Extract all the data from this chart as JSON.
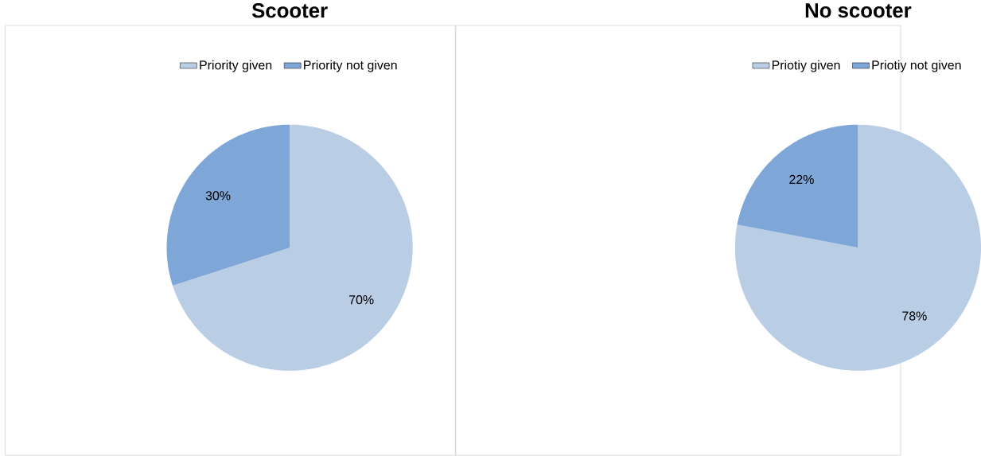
{
  "chart_data": [
    {
      "type": "pie",
      "title": "Scooter",
      "categories": [
        "Priority given",
        "Priority not given"
      ],
      "values": [
        70,
        30
      ],
      "colors": [
        "#b9cde5",
        "#7ea7d8"
      ],
      "value_labels": [
        "70%",
        "30%"
      ],
      "legend": "top"
    },
    {
      "type": "pie",
      "title": "No scooter",
      "categories": [
        "Priotiy given",
        "Priotiy not given"
      ],
      "values": [
        78,
        22
      ],
      "colors": [
        "#b9cde5",
        "#7ea7d8"
      ],
      "value_labels": [
        "78%",
        "22%"
      ],
      "legend": "top"
    }
  ]
}
